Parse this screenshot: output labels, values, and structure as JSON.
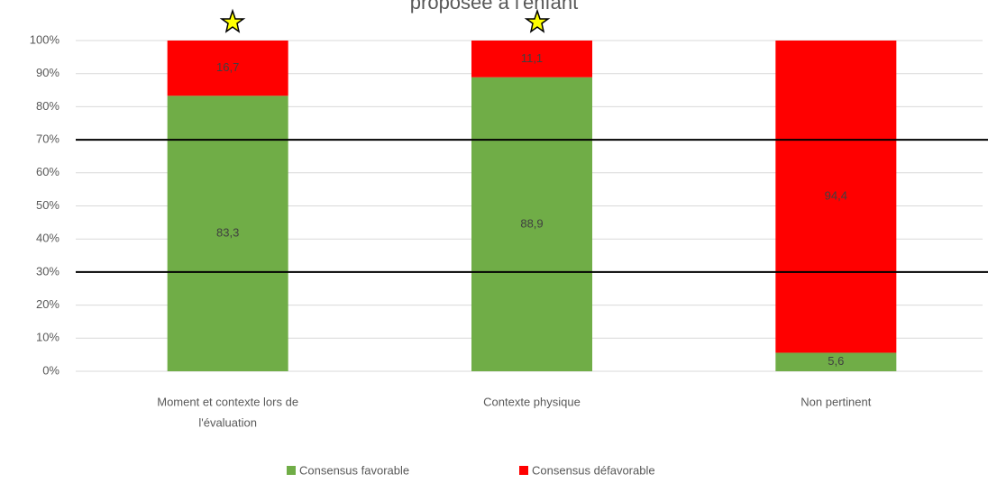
{
  "chart_data": {
    "type": "stacked_bar",
    "title": "proposée à l'enfant",
    "categories": [
      [
        "Moment et contexte lors de",
        "l'évaluation"
      ],
      [
        "Contexte physique"
      ],
      [
        "Non pertinent"
      ]
    ],
    "series": [
      {
        "name": "Consensus favorable",
        "color": "#70ad47",
        "values": [
          83.3,
          88.9,
          5.6
        ],
        "value_labels": [
          "83,3",
          "88,9",
          "5,6"
        ]
      },
      {
        "name": "Consensus défavorable",
        "color": "#ff0000",
        "values": [
          16.7,
          11.1,
          94.4
        ],
        "value_labels": [
          "16,7",
          "11,1",
          "94,4"
        ]
      }
    ],
    "ylim": [
      0,
      100
    ],
    "yticks": [
      {
        "value": 0,
        "label": "0%"
      },
      {
        "value": 10,
        "label": "10%"
      },
      {
        "value": 20,
        "label": "20%"
      },
      {
        "value": 30,
        "label": "30%"
      },
      {
        "value": 40,
        "label": "40%"
      },
      {
        "value": 50,
        "label": "50%"
      },
      {
        "value": 60,
        "label": "60%"
      },
      {
        "value": 70,
        "label": "70%"
      },
      {
        "value": 80,
        "label": "80%"
      },
      {
        "value": 90,
        "label": "90%"
      },
      {
        "value": 100,
        "label": "100%"
      }
    ],
    "reference_lines": [
      30,
      70
    ],
    "grid": true,
    "legend": "bottom"
  }
}
